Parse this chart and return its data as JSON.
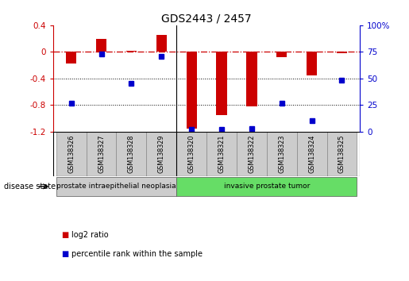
{
  "title": "GDS2443 / 2457",
  "samples": [
    "GSM138326",
    "GSM138327",
    "GSM138328",
    "GSM138329",
    "GSM138320",
    "GSM138321",
    "GSM138322",
    "GSM138323",
    "GSM138324",
    "GSM138325"
  ],
  "log2_ratio": [
    -0.18,
    0.2,
    0.01,
    0.25,
    -1.15,
    -0.95,
    -0.82,
    -0.08,
    -0.35,
    -0.02
  ],
  "percentile_rank": [
    27,
    73,
    45,
    71,
    2,
    2,
    3,
    27,
    10,
    48
  ],
  "bar_color": "#cc0000",
  "dot_color": "#0000cc",
  "ylim_left": [
    -1.2,
    0.4
  ],
  "ylim_right": [
    0,
    100
  ],
  "right_ticks": [
    0,
    25,
    50,
    75,
    100
  ],
  "right_tick_labels": [
    "0",
    "25",
    "50",
    "75",
    "100%"
  ],
  "left_ticks": [
    -1.2,
    -0.8,
    -0.4,
    0.0,
    0.4
  ],
  "left_tick_labels": [
    "-1.2",
    "-0.8",
    "-0.4",
    "0",
    "0.4"
  ],
  "hline_y": 0.0,
  "dotted_lines": [
    -0.4,
    -0.8
  ],
  "group_divider": 3.5,
  "disease_groups": [
    {
      "label": "prostate intraepithelial neoplasia",
      "start": 0,
      "end": 4,
      "color": "#cccccc"
    },
    {
      "label": "invasive prostate tumor",
      "start": 4,
      "end": 10,
      "color": "#66dd66"
    }
  ],
  "legend_items": [
    {
      "color": "#cc0000",
      "label": "log2 ratio"
    },
    {
      "color": "#0000cc",
      "label": "percentile rank within the sample"
    }
  ],
  "disease_state_label": "disease state",
  "background_color": "#ffffff",
  "sample_box_color": "#cccccc",
  "sample_box_edge": "#888888"
}
